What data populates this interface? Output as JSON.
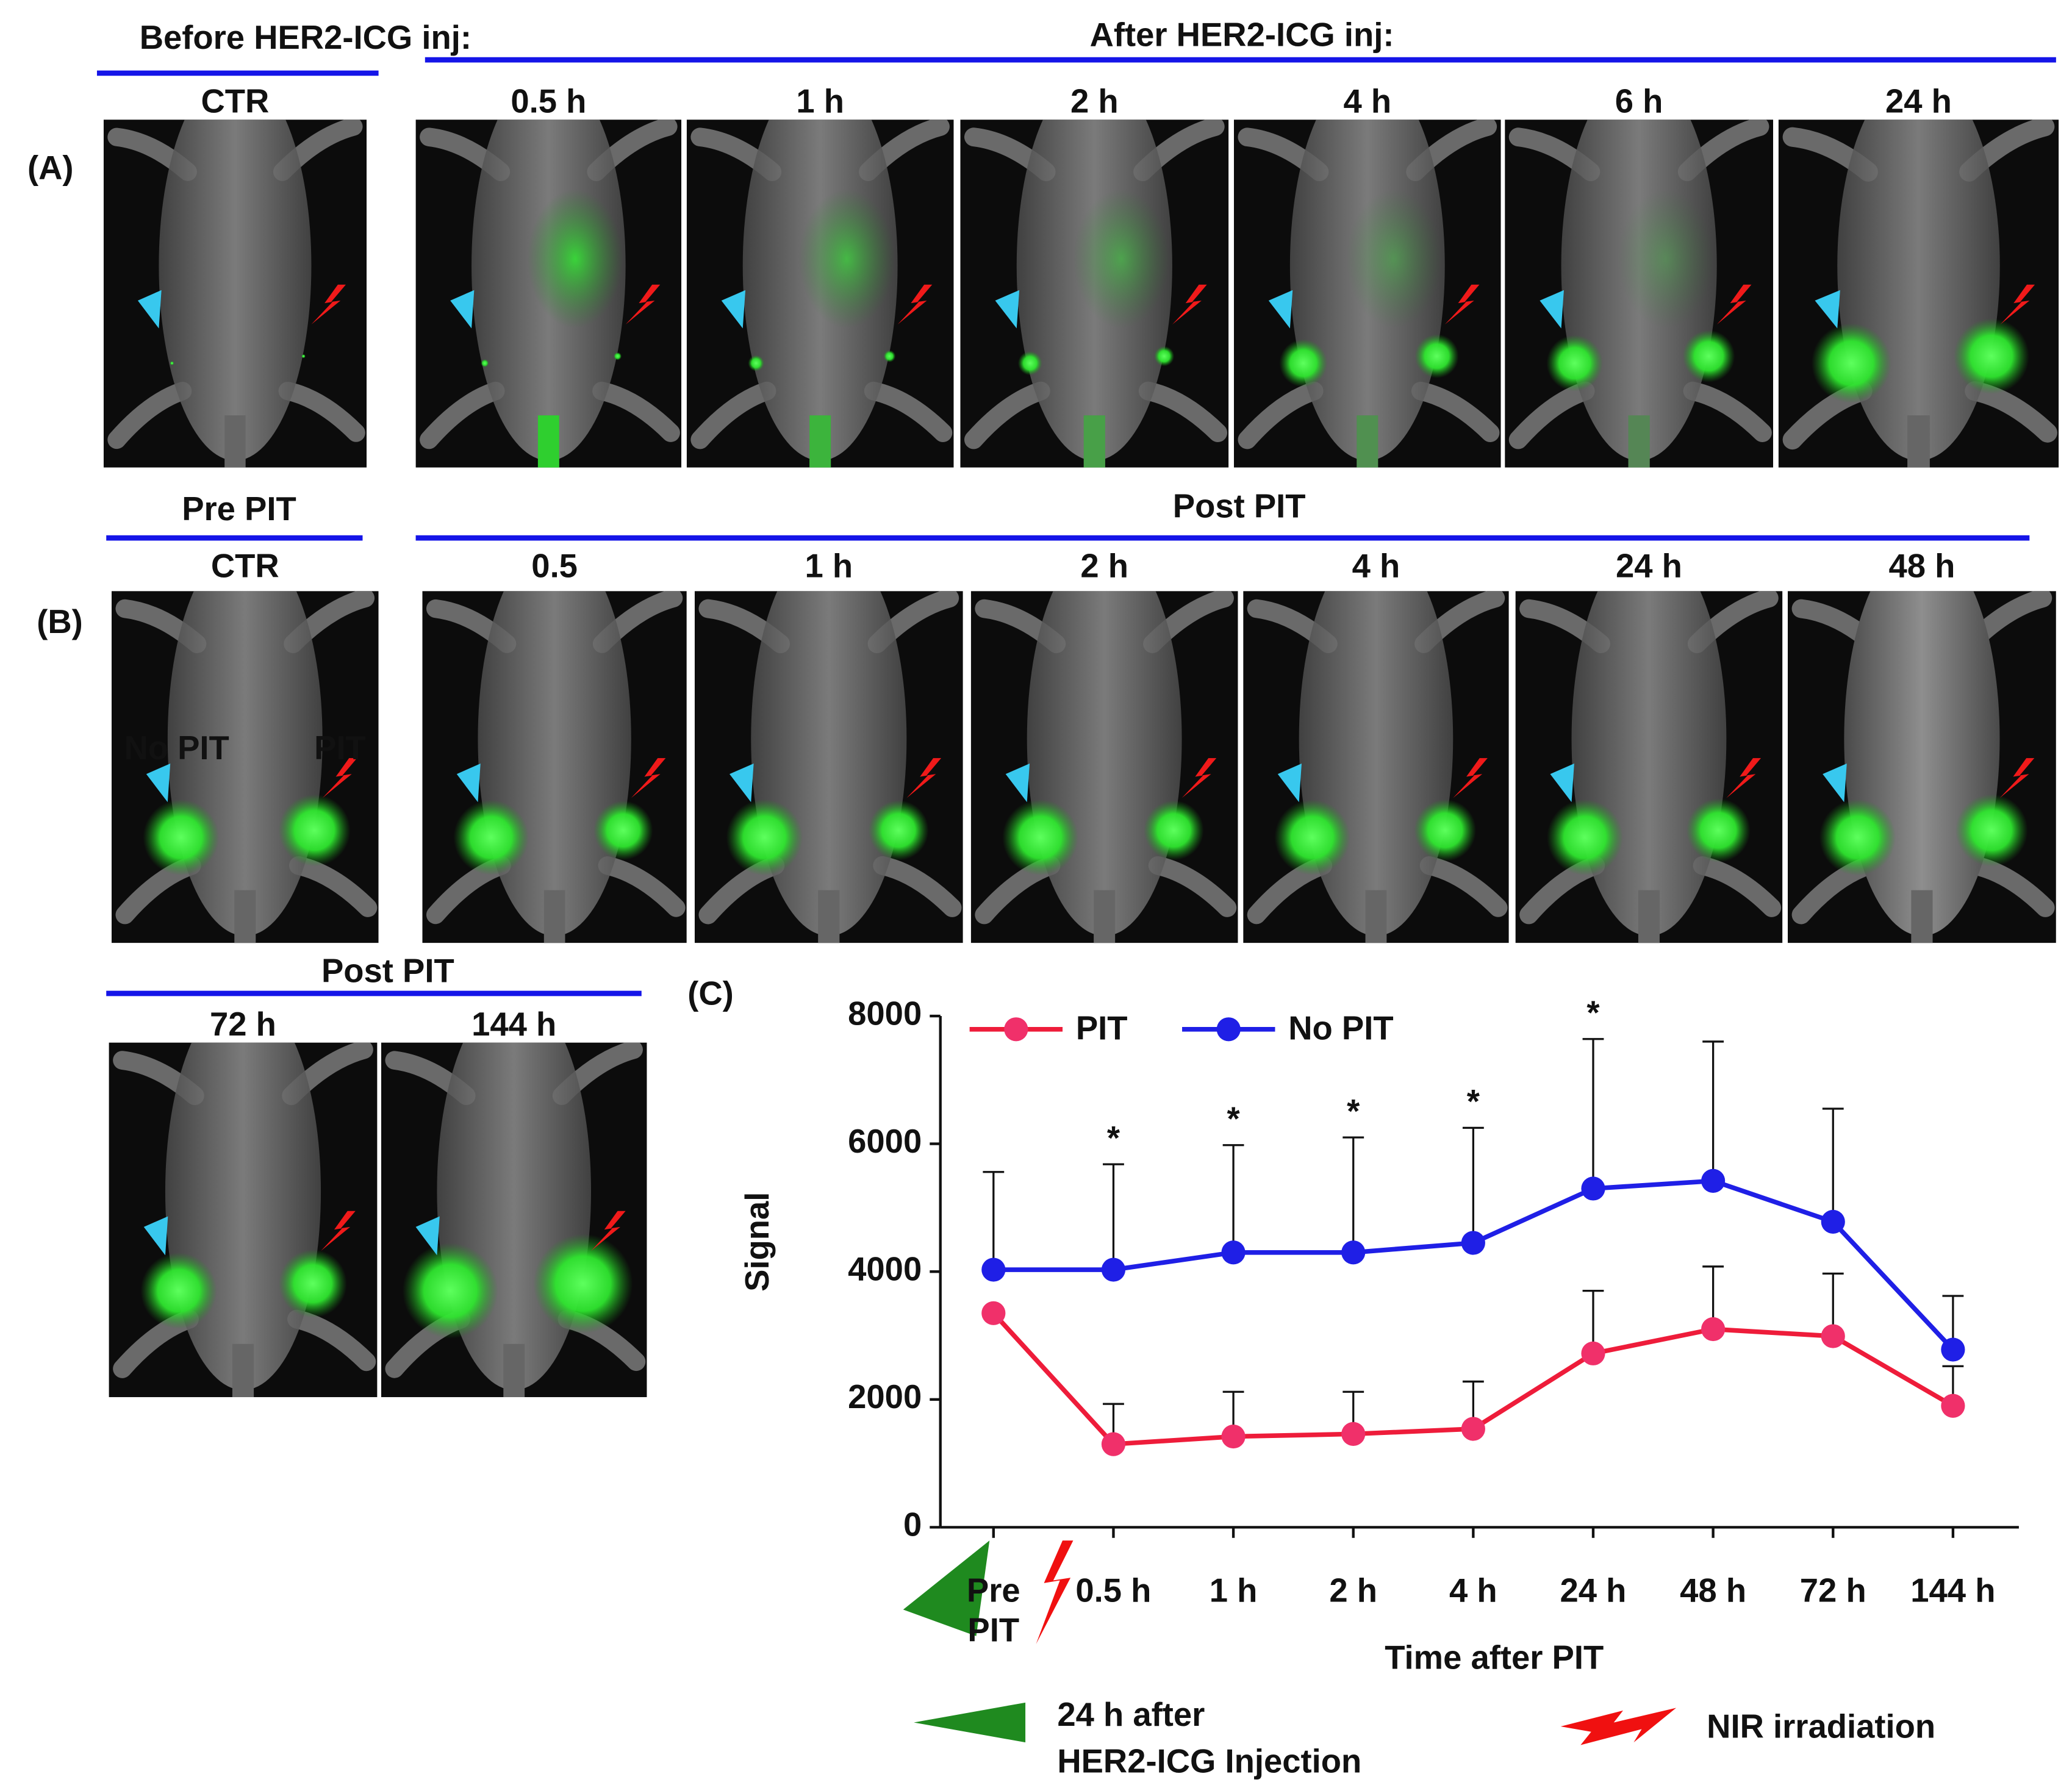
{
  "panel_a": {
    "label": "(A)",
    "before_title": "Before HER2-ICG inj:",
    "after_title": "After HER2-ICG inj:",
    "images": [
      "CTR",
      "0.5 h",
      "1 h",
      "2 h",
      "4 h",
      "6 h",
      "24 h"
    ]
  },
  "panel_b": {
    "label": "(B)",
    "pre_title": "Pre PIT",
    "post_title": "Post PIT",
    "images": [
      "CTR",
      "0.5",
      "1 h",
      "2 h",
      "4 h",
      "24 h",
      "48 h"
    ],
    "marker_left": "No PIT",
    "marker_right": "PIT"
  },
  "panel_b_cont": {
    "post_title": "Post PIT",
    "images": [
      "72 h",
      "144 h"
    ]
  },
  "chart_data": {
    "type": "line",
    "panel_label": "(C)",
    "x_label": "Time after PIT",
    "y_label": "Signal",
    "categories": [
      "Pre PIT",
      "0.5 h",
      "1 h",
      "2 h",
      "4 h",
      "24 h",
      "48 h",
      "72 h",
      "144 h"
    ],
    "series": [
      {
        "name": "PIT",
        "color": "#ee1c3a",
        "marker_color": "#f0306a",
        "values": [
          3350,
          1300,
          1420,
          1460,
          1540,
          2720,
          3100,
          2990,
          1900
        ],
        "errors": [
          null,
          630,
          700,
          660,
          740,
          980,
          980,
          980,
          620
        ]
      },
      {
        "name": "No PIT",
        "color": "#1f1fe6",
        "marker_color": "#1f1fe6",
        "values": [
          4030,
          4030,
          4300,
          4300,
          4450,
          5300,
          5420,
          4780,
          2780
        ],
        "errors": [
          1530,
          1650,
          1680,
          1800,
          1800,
          2340,
          2180,
          1770,
          840
        ]
      }
    ],
    "annotations": [
      {
        "category": "0.5 h",
        "text": "*"
      },
      {
        "category": "1 h",
        "text": "*"
      },
      {
        "category": "2 h",
        "text": "*"
      },
      {
        "category": "4 h",
        "text": "*"
      },
      {
        "category": "24 h",
        "text": "*"
      }
    ],
    "ylim": [
      0,
      8000
    ],
    "yticks": [
      0,
      2000,
      4000,
      6000,
      8000
    ],
    "grid": false,
    "legend": "top",
    "notes": {
      "injection": [
        "24 h after",
        "HER2-ICG Injection"
      ],
      "irradiation": "NIR irradiation"
    }
  }
}
